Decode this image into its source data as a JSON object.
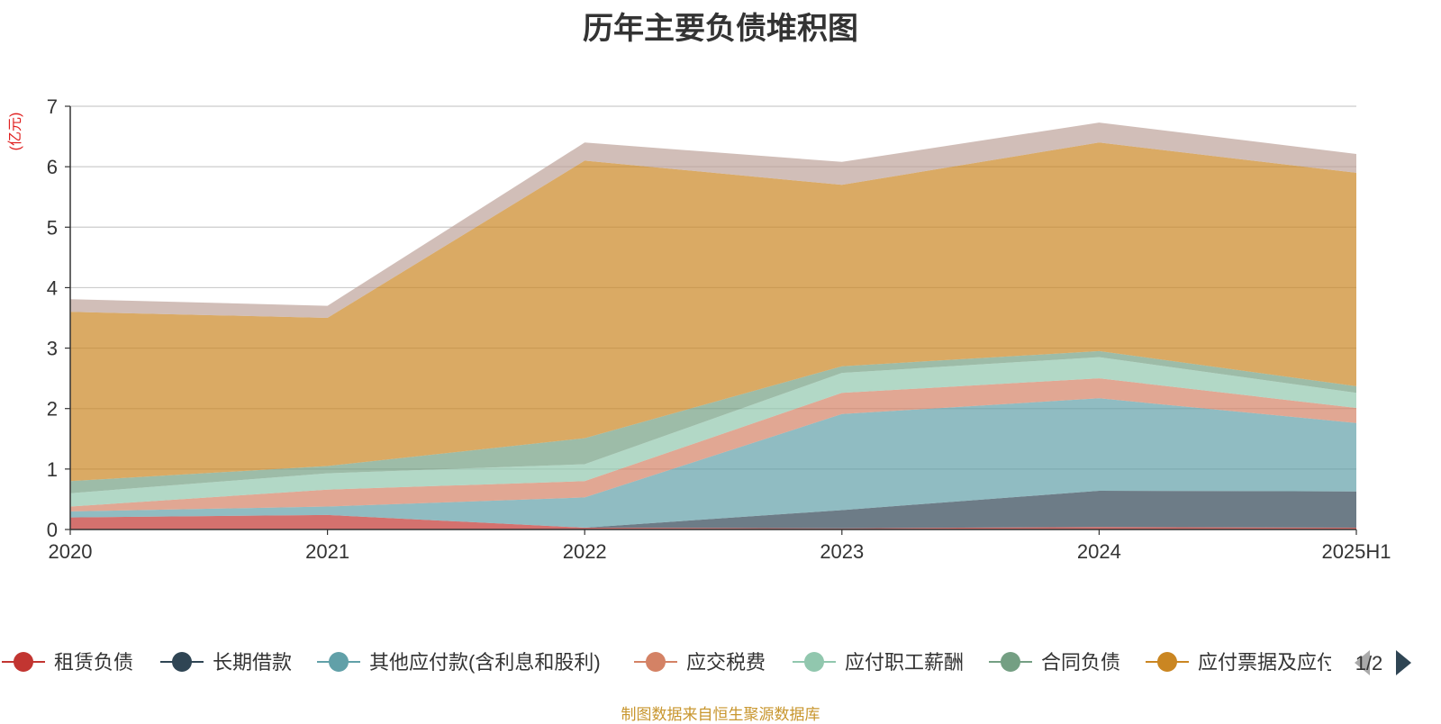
{
  "chart_data": {
    "type": "area",
    "stacked": true,
    "title": "历年主要负债堆积图",
    "ylabel": "(亿元)",
    "xlabel": "",
    "categories": [
      "2020",
      "2021",
      "2022",
      "2023",
      "2024",
      "2025H1"
    ],
    "ylim": [
      0,
      7
    ],
    "yticks": [
      "0",
      "1",
      "2",
      "3",
      "4",
      "5",
      "6",
      "7"
    ],
    "grid": true,
    "legend_position": "bottom",
    "series": [
      {
        "name": "租赁负债",
        "color": "#c23531",
        "values": [
          0.2,
          0.24,
          0.03,
          0.02,
          0.04,
          0.03
        ]
      },
      {
        "name": "长期借款",
        "color": "#2f4554",
        "values": [
          0.0,
          0.0,
          0.0,
          0.3,
          0.6,
          0.6
        ]
      },
      {
        "name": "其他应付款(含利息和股利)",
        "color": "#61a0a8",
        "values": [
          0.1,
          0.14,
          0.5,
          1.59,
          1.53,
          1.13
        ]
      },
      {
        "name": "应交税费",
        "color": "#d48265",
        "values": [
          0.08,
          0.28,
          0.27,
          0.35,
          0.33,
          0.25
        ]
      },
      {
        "name": "应付职工薪酬",
        "color": "#91c7ae",
        "values": [
          0.22,
          0.27,
          0.28,
          0.33,
          0.35,
          0.25
        ]
      },
      {
        "name": "合同负债",
        "color": "#749f83",
        "values": [
          0.2,
          0.12,
          0.43,
          0.11,
          0.1,
          0.11
        ]
      },
      {
        "name": "应付票据及应付账款",
        "color": "#ca8622",
        "values": [
          2.8,
          2.45,
          4.59,
          3.0,
          3.45,
          3.53
        ]
      },
      {
        "name": "",
        "color": "#bda29a",
        "values": [
          0.21,
          0.2,
          0.3,
          0.38,
          0.33,
          0.31
        ]
      }
    ]
  },
  "legend": {
    "items": [
      "租赁负债",
      "长期借款",
      "其他应付款(含利息和股利)",
      "应交税费",
      "应付职工薪酬",
      "合同负债",
      "应付票据及应付账款"
    ],
    "page": "1/2"
  },
  "source_note": "制图数据来自恒生聚源数据库"
}
